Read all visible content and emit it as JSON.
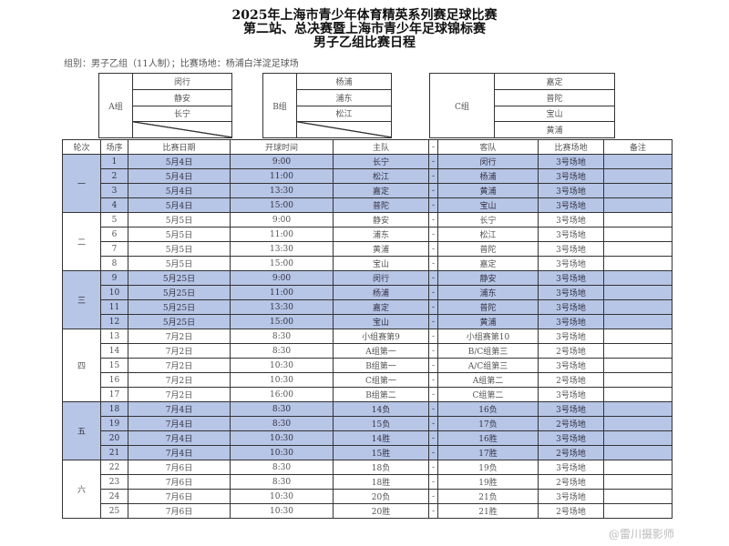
{
  "title": [
    "2025年上海市青少年体育精英系列赛足球比赛",
    "第二站、总决赛暨上海市青少年足球锦标赛",
    "男子乙组比赛日程"
  ],
  "info": "组别：男子乙组（11人制）；比赛场地：杨浦白洋淀足球场",
  "groups": [
    {
      "name": "A组",
      "teams": [
        "闵行",
        "静安",
        "长宁"
      ]
    },
    {
      "name": "B组",
      "teams": [
        "杨浦",
        "浦东",
        "松江"
      ]
    },
    {
      "name": "C组",
      "teams": [
        "嘉定",
        "普陀",
        "宝山",
        "黄浦"
      ]
    }
  ],
  "headers": [
    "轮次",
    "场序",
    "比赛日期",
    "开球时间",
    "主队",
    "-",
    "客队",
    "比赛场地",
    "备注"
  ],
  "highlight_color": "#b7c5e6",
  "rounds": [
    {
      "label": "一",
      "highlight": true,
      "matches": [
        [
          "1",
          "5月4日",
          "9:00",
          "长宁",
          "闵行",
          "3号场地"
        ],
        [
          "2",
          "5月4日",
          "11:00",
          "松江",
          "杨浦",
          "3号场地"
        ],
        [
          "3",
          "5月4日",
          "13:30",
          "嘉定",
          "黄浦",
          "3号场地"
        ],
        [
          "4",
          "5月4日",
          "15:00",
          "普陀",
          "宝山",
          "3号场地"
        ]
      ]
    },
    {
      "label": "二",
      "highlight": false,
      "matches": [
        [
          "5",
          "5月5日",
          "9:00",
          "静安",
          "长宁",
          "3号场地"
        ],
        [
          "6",
          "5月5日",
          "11:00",
          "浦东",
          "松江",
          "3号场地"
        ],
        [
          "7",
          "5月5日",
          "13:30",
          "黄浦",
          "普陀",
          "3号场地"
        ],
        [
          "8",
          "5月5日",
          "15:00",
          "宝山",
          "嘉定",
          "3号场地"
        ]
      ]
    },
    {
      "label": "三",
      "highlight": true,
      "matches": [
        [
          "9",
          "5月25日",
          "9:00",
          "闵行",
          "静安",
          "3号场地"
        ],
        [
          "10",
          "5月25日",
          "11:00",
          "杨浦",
          "浦东",
          "3号场地"
        ],
        [
          "11",
          "5月25日",
          "13:30",
          "嘉定",
          "普陀",
          "3号场地"
        ],
        [
          "12",
          "5月25日",
          "15:00",
          "宝山",
          "黄浦",
          "3号场地"
        ]
      ]
    },
    {
      "label": "四",
      "highlight": false,
      "matches": [
        [
          "13",
          "7月2日",
          "8:30",
          "小组赛第9",
          "小组赛第10",
          "3号场地"
        ],
        [
          "14",
          "7月2日",
          "8:30",
          "A组第一",
          "B/C组第三",
          "2号场地"
        ],
        [
          "15",
          "7月2日",
          "10:30",
          "B组第一",
          "A/C组第三",
          "3号场地"
        ],
        [
          "16",
          "7月2日",
          "10:30",
          "C组第一",
          "A组第二",
          "2号场地"
        ],
        [
          "17",
          "7月2日",
          "16:00",
          "B组第二",
          "C组第二",
          "3号场地"
        ]
      ]
    },
    {
      "label": "五",
      "highlight": true,
      "matches": [
        [
          "18",
          "7月4日",
          "8:30",
          "14负",
          "16负",
          "3号场地"
        ],
        [
          "19",
          "7月4日",
          "8:30",
          "15负",
          "17负",
          "2号场地"
        ],
        [
          "20",
          "7月4日",
          "10:30",
          "14胜",
          "16胜",
          "3号场地"
        ],
        [
          "21",
          "7月4日",
          "10:30",
          "15胜",
          "17胜",
          "2号场地"
        ]
      ]
    },
    {
      "label": "六",
      "highlight": false,
      "matches": [
        [
          "22",
          "7月6日",
          "8:30",
          "18负",
          "19负",
          "3号场地"
        ],
        [
          "23",
          "7月6日",
          "8:30",
          "18胜",
          "19胜",
          "2号场地"
        ],
        [
          "24",
          "7月6日",
          "10:30",
          "20负",
          "21负",
          "3号场地"
        ],
        [
          "25",
          "7月6日",
          "10:30",
          "20胜",
          "21胜",
          "2号场地"
        ]
      ]
    }
  ],
  "watermark": "@雷川摄影师"
}
